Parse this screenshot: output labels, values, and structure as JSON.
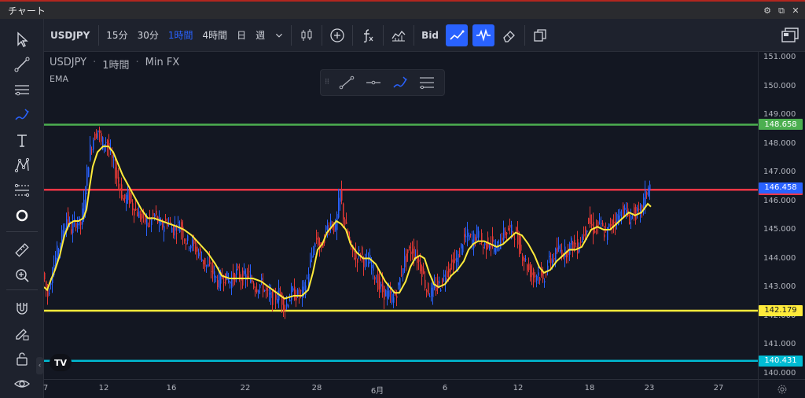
{
  "window": {
    "title": "チャート"
  },
  "toolbar": {
    "symbol": "USDJPY",
    "intervals": [
      "15分",
      "30分",
      "1時間",
      "4時間",
      "日",
      "週"
    ],
    "active_interval": "1時間",
    "bid_label": "Bid"
  },
  "legend": {
    "symbol": "USDJPY",
    "interval": "1時間",
    "source": "Min FX",
    "indicator": "EMA"
  },
  "colors": {
    "background": "#131722",
    "panel": "#1e222d",
    "accent": "#2962ff",
    "candle_up": "#2962ff",
    "candle_down": "#e53935",
    "ema": "#ffeb3b",
    "line_green": "#4caf50",
    "line_red": "#f23645",
    "line_yellow": "#ffeb3b",
    "line_cyan": "#00bcd4"
  },
  "price_axis": {
    "ticks": [
      "151.000",
      "150.000",
      "149.000",
      "148.000",
      "147.000",
      "146.000",
      "145.000",
      "144.000",
      "143.000",
      "142.000",
      "141.000",
      "140.000"
    ]
  },
  "time_axis": {
    "ticks": [
      "7",
      "12",
      "16",
      "22",
      "28",
      "6月",
      "6",
      "12",
      "18",
      "23",
      "27"
    ]
  },
  "horizontal_lines": [
    {
      "name": "green-level",
      "price": 148.658,
      "label": "148.658",
      "color": "#4caf50"
    },
    {
      "name": "red-level",
      "price": 146.392,
      "label": "146.392",
      "color": "#f23645"
    },
    {
      "name": "yellow-level",
      "price": 142.179,
      "label": "142.179",
      "color": "#ffeb3b"
    },
    {
      "name": "cyan-level",
      "price": 140.431,
      "label": "140.431",
      "color": "#00bcd4"
    }
  ],
  "last_price": {
    "value": 146.458,
    "label": "146.458",
    "color": "#2962ff"
  },
  "chart_data": {
    "type": "candlestick",
    "title": "USDJPY · 1時間 · Min FX",
    "ylim": [
      140,
      151
    ],
    "ema_path": [
      [
        0,
        143.0
      ],
      [
        4,
        142.9
      ],
      [
        8,
        143.2
      ],
      [
        14,
        143.6
      ],
      [
        20,
        144.1
      ],
      [
        26,
        144.8
      ],
      [
        32,
        145.2
      ],
      [
        38,
        145.3
      ],
      [
        44,
        145.3
      ],
      [
        50,
        145.4
      ],
      [
        54,
        145.7
      ],
      [
        58,
        146.5
      ],
      [
        62,
        147.2
      ],
      [
        68,
        147.7
      ],
      [
        75,
        147.9
      ],
      [
        82,
        147.9
      ],
      [
        88,
        147.7
      ],
      [
        94,
        147.3
      ],
      [
        100,
        146.9
      ],
      [
        106,
        146.6
      ],
      [
        112,
        146.3
      ],
      [
        118,
        146.0
      ],
      [
        124,
        145.7
      ],
      [
        132,
        145.4
      ],
      [
        140,
        145.4
      ],
      [
        150,
        145.3
      ],
      [
        160,
        145.2
      ],
      [
        170,
        145.1
      ],
      [
        178,
        145.0
      ],
      [
        188,
        144.8
      ],
      [
        198,
        144.5
      ],
      [
        208,
        144.2
      ],
      [
        218,
        143.8
      ],
      [
        226,
        143.4
      ],
      [
        236,
        143.3
      ],
      [
        246,
        143.3
      ],
      [
        256,
        143.3
      ],
      [
        266,
        143.3
      ],
      [
        276,
        143.2
      ],
      [
        286,
        143.0
      ],
      [
        296,
        142.8
      ],
      [
        306,
        142.6
      ],
      [
        318,
        142.7
      ],
      [
        328,
        142.7
      ],
      [
        336,
        142.9
      ],
      [
        342,
        143.5
      ],
      [
        348,
        144.3
      ],
      [
        354,
        144.5
      ],
      [
        360,
        144.9
      ],
      [
        366,
        145.1
      ],
      [
        372,
        145.3
      ],
      [
        378,
        145.2
      ],
      [
        384,
        145.0
      ],
      [
        390,
        144.5
      ],
      [
        398,
        144.2
      ],
      [
        406,
        144.0
      ],
      [
        414,
        144.0
      ],
      [
        422,
        143.8
      ],
      [
        428,
        143.5
      ],
      [
        434,
        143.2
      ],
      [
        440,
        143.0
      ],
      [
        446,
        142.8
      ],
      [
        452,
        142.8
      ],
      [
        460,
        143.2
      ],
      [
        466,
        143.7
      ],
      [
        472,
        144.0
      ],
      [
        478,
        144.1
      ],
      [
        484,
        144.0
      ],
      [
        490,
        143.5
      ],
      [
        496,
        143.1
      ],
      [
        502,
        143.0
      ],
      [
        510,
        143.1
      ],
      [
        518,
        143.4
      ],
      [
        526,
        143.6
      ],
      [
        534,
        143.9
      ],
      [
        540,
        144.3
      ],
      [
        546,
        144.5
      ],
      [
        552,
        144.6
      ],
      [
        560,
        144.6
      ],
      [
        568,
        144.5
      ],
      [
        576,
        144.4
      ],
      [
        584,
        144.5
      ],
      [
        592,
        144.7
      ],
      [
        600,
        144.9
      ],
      [
        608,
        144.8
      ],
      [
        616,
        144.5
      ],
      [
        624,
        144.1
      ],
      [
        630,
        143.7
      ],
      [
        636,
        143.5
      ],
      [
        644,
        143.6
      ],
      [
        652,
        143.9
      ],
      [
        660,
        144.1
      ],
      [
        668,
        144.3
      ],
      [
        676,
        144.3
      ],
      [
        684,
        144.4
      ],
      [
        690,
        144.7
      ],
      [
        696,
        145.0
      ],
      [
        704,
        145.1
      ],
      [
        712,
        145.0
      ],
      [
        720,
        145.0
      ],
      [
        728,
        145.2
      ],
      [
        736,
        145.4
      ],
      [
        744,
        145.6
      ],
      [
        752,
        145.5
      ],
      [
        760,
        145.6
      ],
      [
        768,
        145.9
      ],
      [
        772,
        145.8
      ]
    ],
    "price_path": [
      [
        0,
        143.5
      ],
      [
        6,
        142.7
      ],
      [
        12,
        143.6
      ],
      [
        18,
        144.2
      ],
      [
        24,
        144.8
      ],
      [
        30,
        145.4
      ],
      [
        36,
        145.0
      ],
      [
        42,
        145.3
      ],
      [
        48,
        145.2
      ],
      [
        52,
        145.9
      ],
      [
        56,
        147.0
      ],
      [
        60,
        147.8
      ],
      [
        64,
        148.2
      ],
      [
        70,
        148.5
      ],
      [
        74,
        148.0
      ],
      [
        80,
        148.1
      ],
      [
        86,
        147.6
      ],
      [
        92,
        147.0
      ],
      [
        98,
        146.5
      ],
      [
        102,
        146.0
      ],
      [
        108,
        146.2
      ],
      [
        114,
        145.8
      ],
      [
        120,
        145.6
      ],
      [
        126,
        145.4
      ],
      [
        134,
        145.2
      ],
      [
        142,
        145.5
      ],
      [
        150,
        145.1
      ],
      [
        158,
        145.3
      ],
      [
        166,
        145.0
      ],
      [
        174,
        145.2
      ],
      [
        182,
        144.6
      ],
      [
        190,
        144.5
      ],
      [
        198,
        144.2
      ],
      [
        206,
        143.8
      ],
      [
        214,
        143.6
      ],
      [
        222,
        143.2
      ],
      [
        230,
        143.4
      ],
      [
        238,
        143.2
      ],
      [
        246,
        143.5
      ],
      [
        254,
        143.3
      ],
      [
        262,
        143.4
      ],
      [
        270,
        143.0
      ],
      [
        278,
        143.1
      ],
      [
        286,
        142.7
      ],
      [
        294,
        142.6
      ],
      [
        300,
        142.8
      ],
      [
        308,
        142.3
      ],
      [
        316,
        142.8
      ],
      [
        324,
        142.7
      ],
      [
        330,
        142.8
      ],
      [
        336,
        143.3
      ],
      [
        342,
        144.1
      ],
      [
        348,
        144.7
      ],
      [
        354,
        144.3
      ],
      [
        360,
        145.0
      ],
      [
        366,
        145.3
      ],
      [
        372,
        145.0
      ],
      [
        378,
        146.3
      ],
      [
        382,
        145.5
      ],
      [
        386,
        145.0
      ],
      [
        392,
        144.3
      ],
      [
        398,
        144.0
      ],
      [
        404,
        144.2
      ],
      [
        410,
        143.8
      ],
      [
        416,
        143.9
      ],
      [
        422,
        143.4
      ],
      [
        428,
        143.0
      ],
      [
        434,
        142.8
      ],
      [
        440,
        142.7
      ],
      [
        446,
        142.6
      ],
      [
        452,
        143.0
      ],
      [
        458,
        143.8
      ],
      [
        464,
        144.2
      ],
      [
        470,
        144.3
      ],
      [
        476,
        144.0
      ],
      [
        482,
        143.6
      ],
      [
        488,
        142.9
      ],
      [
        494,
        142.8
      ],
      [
        500,
        143.0
      ],
      [
        506,
        143.1
      ],
      [
        514,
        143.6
      ],
      [
        520,
        143.8
      ],
      [
        528,
        144.0
      ],
      [
        534,
        144.6
      ],
      [
        540,
        144.8
      ],
      [
        546,
        144.6
      ],
      [
        552,
        144.9
      ],
      [
        560,
        144.4
      ],
      [
        568,
        144.6
      ],
      [
        576,
        144.3
      ],
      [
        584,
        144.8
      ],
      [
        592,
        145.0
      ],
      [
        600,
        144.9
      ],
      [
        606,
        144.4
      ],
      [
        612,
        144.0
      ],
      [
        618,
        143.6
      ],
      [
        624,
        143.4
      ],
      [
        630,
        143.5
      ],
      [
        636,
        143.2
      ],
      [
        642,
        143.8
      ],
      [
        648,
        144.0
      ],
      [
        656,
        144.3
      ],
      [
        664,
        144.2
      ],
      [
        672,
        144.5
      ],
      [
        680,
        144.4
      ],
      [
        688,
        144.9
      ],
      [
        694,
        145.3
      ],
      [
        700,
        145.0
      ],
      [
        708,
        145.2
      ],
      [
        716,
        144.8
      ],
      [
        722,
        145.2
      ],
      [
        730,
        145.4
      ],
      [
        738,
        145.7
      ],
      [
        746,
        145.4
      ],
      [
        752,
        145.6
      ],
      [
        758,
        145.5
      ],
      [
        764,
        146.0
      ],
      [
        770,
        146.5
      ]
    ]
  }
}
